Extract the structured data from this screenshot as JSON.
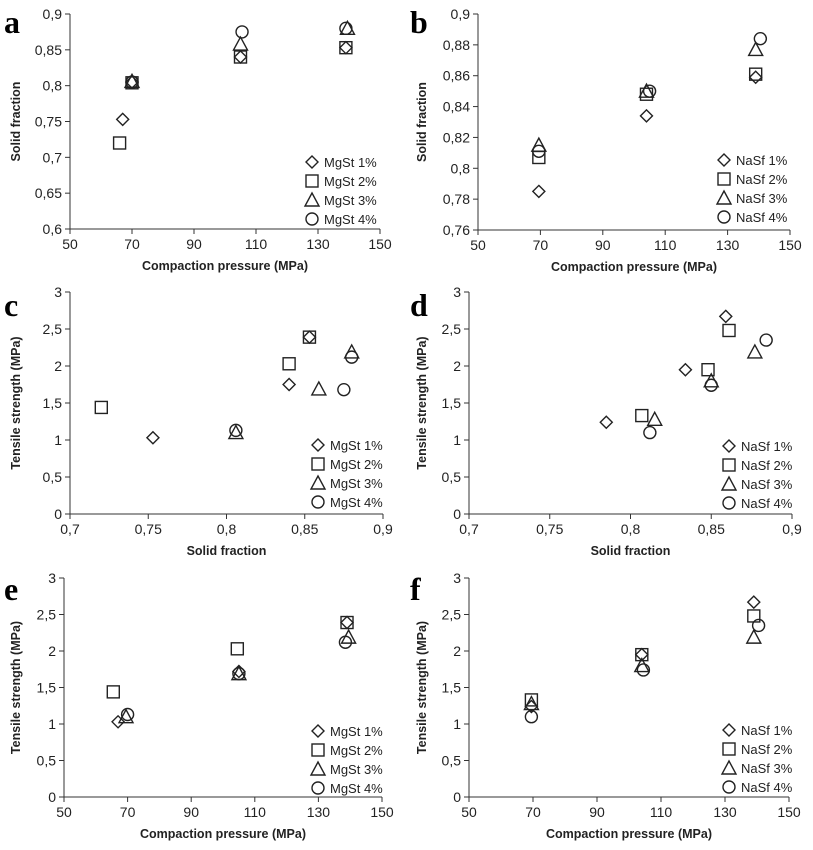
{
  "chart_data": [
    {
      "panel": "a",
      "type": "scatter",
      "xlabel": "Compaction pressure (MPa)",
      "ylabel": "Solid fraction",
      "xlim": [
        50,
        150
      ],
      "ylim": [
        0.6,
        0.9
      ],
      "xticks": [
        "50",
        "70",
        "90",
        "110",
        "130",
        "150"
      ],
      "yticks": [
        "0,6",
        "0,65",
        "0,7",
        "0,75",
        "0,8",
        "0,85",
        "0,9"
      ],
      "legend_position": "bottom-right",
      "series": [
        {
          "name": "MgSt 1%",
          "marker": "diamond",
          "points": [
            [
              67,
              0.753
            ],
            [
              70,
              0.805
            ],
            [
              105,
              0.84
            ],
            [
              139,
              0.853
            ]
          ]
        },
        {
          "name": "MgSt 2%",
          "marker": "square",
          "points": [
            [
              66,
              0.72
            ],
            [
              70,
              0.804
            ],
            [
              105,
              0.84
            ],
            [
              139,
              0.853
            ]
          ]
        },
        {
          "name": "MgSt 3%",
          "marker": "triangle",
          "points": [
            [
              70,
              0.806
            ],
            [
              105,
              0.858
            ],
            [
              139.5,
              0.88
            ]
          ]
        },
        {
          "name": "MgSt 4%",
          "marker": "circle",
          "points": [
            [
              70,
              0.805
            ],
            [
              105.5,
              0.875
            ],
            [
              139,
              0.88
            ]
          ]
        }
      ]
    },
    {
      "panel": "b",
      "type": "scatter",
      "xlabel": "Compaction pressure (MPa)",
      "ylabel": "Solid fraction",
      "xlim": [
        50,
        150
      ],
      "ylim": [
        0.76,
        0.9
      ],
      "xticks": [
        "50",
        "70",
        "90",
        "110",
        "130",
        "150"
      ],
      "yticks": [
        "0,76",
        "0,78",
        "0,8",
        "0,82",
        "0,84",
        "0,86",
        "0,88",
        "0,9"
      ],
      "legend_position": "bottom-right",
      "series": [
        {
          "name": "NaSf 1%",
          "marker": "diamond",
          "points": [
            [
              69.5,
              0.785
            ],
            [
              104,
              0.834
            ],
            [
              139,
              0.859
            ]
          ]
        },
        {
          "name": "NaSf 2%",
          "marker": "square",
          "points": [
            [
              69.5,
              0.807
            ],
            [
              104,
              0.848
            ],
            [
              139,
              0.861
            ]
          ]
        },
        {
          "name": "NaSf 3%",
          "marker": "triangle",
          "points": [
            [
              69.5,
              0.815
            ],
            [
              104,
              0.85
            ],
            [
              139,
              0.877
            ]
          ]
        },
        {
          "name": "NaSf 4%",
          "marker": "circle",
          "points": [
            [
              69.5,
              0.811
            ],
            [
              105,
              0.85
            ],
            [
              140.5,
              0.884
            ]
          ]
        }
      ]
    },
    {
      "panel": "c",
      "type": "scatter",
      "xlabel": "Solid fraction",
      "ylabel": "Tensile strength (MPa)",
      "xlim": [
        0.7,
        0.9
      ],
      "ylim": [
        0,
        3
      ],
      "xticks": [
        "0,7",
        "0,75",
        "0,8",
        "0,85",
        "0,9"
      ],
      "yticks": [
        "0",
        "0,5",
        "1",
        "1,5",
        "2",
        "2,5",
        "3"
      ],
      "legend_position": "bottom-right",
      "series": [
        {
          "name": "MgSt 1%",
          "marker": "diamond",
          "points": [
            [
              0.753,
              1.03
            ],
            [
              0.84,
              1.75
            ],
            [
              0.853,
              2.39
            ]
          ]
        },
        {
          "name": "MgSt 2%",
          "marker": "square",
          "points": [
            [
              0.72,
              1.44
            ],
            [
              0.84,
              2.03
            ],
            [
              0.853,
              2.39
            ]
          ]
        },
        {
          "name": "MgSt 3%",
          "marker": "triangle",
          "points": [
            [
              0.806,
              1.1
            ],
            [
              0.859,
              1.69
            ],
            [
              0.88,
              2.19
            ]
          ]
        },
        {
          "name": "MgSt 4%",
          "marker": "circle",
          "points": [
            [
              0.806,
              1.13
            ],
            [
              0.875,
              1.68
            ],
            [
              0.88,
              2.12
            ]
          ]
        }
      ]
    },
    {
      "panel": "d",
      "type": "scatter",
      "xlabel": "Solid fraction",
      "ylabel": "Tensile strength (MPa)",
      "xlim": [
        0.7,
        0.9
      ],
      "ylim": [
        0,
        3
      ],
      "xticks": [
        "0,7",
        "0,75",
        "0,8",
        "0,85",
        "0,9"
      ],
      "yticks": [
        "0",
        "0,5",
        "1",
        "1,5",
        "2",
        "2,5",
        "3"
      ],
      "legend_position": "bottom-right",
      "series": [
        {
          "name": "NaSf 1%",
          "marker": "diamond",
          "points": [
            [
              0.785,
              1.24
            ],
            [
              0.834,
              1.95
            ],
            [
              0.859,
              2.67
            ]
          ]
        },
        {
          "name": "NaSf 2%",
          "marker": "square",
          "points": [
            [
              0.807,
              1.33
            ],
            [
              0.848,
              1.95
            ],
            [
              0.861,
              2.48
            ]
          ]
        },
        {
          "name": "NaSf 3%",
          "marker": "triangle",
          "points": [
            [
              0.815,
              1.28
            ],
            [
              0.85,
              1.8
            ],
            [
              0.877,
              2.19
            ]
          ]
        },
        {
          "name": "NaSf 4%",
          "marker": "circle",
          "points": [
            [
              0.812,
              1.1
            ],
            [
              0.85,
              1.74
            ],
            [
              0.884,
              2.35
            ]
          ]
        }
      ]
    },
    {
      "panel": "e",
      "type": "scatter",
      "xlabel": "Compaction pressure (MPa)",
      "ylabel": "Tensile strength (MPa)",
      "xlim": [
        50,
        150
      ],
      "ylim": [
        0,
        3
      ],
      "xticks": [
        "50",
        "70",
        "90",
        "110",
        "130",
        "150"
      ],
      "yticks": [
        "0",
        "0,5",
        "1",
        "1,5",
        "2",
        "2,5",
        "3"
      ],
      "legend_position": "bottom-right",
      "series": [
        {
          "name": "MgSt 1%",
          "marker": "diamond",
          "points": [
            [
              67,
              1.03
            ],
            [
              105,
              1.72
            ],
            [
              139,
              2.39
            ]
          ]
        },
        {
          "name": "MgSt 2%",
          "marker": "square",
          "points": [
            [
              65.5,
              1.44
            ],
            [
              104.5,
              2.03
            ],
            [
              139,
              2.39
            ]
          ]
        },
        {
          "name": "MgSt 3%",
          "marker": "triangle",
          "points": [
            [
              69.5,
              1.1
            ],
            [
              105,
              1.69
            ],
            [
              139.5,
              2.19
            ]
          ]
        },
        {
          "name": "MgSt 4%",
          "marker": "circle",
          "points": [
            [
              70,
              1.13
            ],
            [
              105,
              1.69
            ],
            [
              138.5,
              2.12
            ]
          ]
        }
      ]
    },
    {
      "panel": "f",
      "type": "scatter",
      "xlabel": "Compaction pressure (MPa)",
      "ylabel": "Tensile strength (MPa)",
      "xlim": [
        50,
        150
      ],
      "ylim": [
        0,
        3
      ],
      "xticks": [
        "50",
        "70",
        "90",
        "110",
        "130",
        "150"
      ],
      "yticks": [
        "0",
        "0,5",
        "1",
        "1,5",
        "2",
        "2,5",
        "3"
      ],
      "legend_position": "bottom-right",
      "series": [
        {
          "name": "NaSf 1%",
          "marker": "diamond",
          "points": [
            [
              69.5,
              1.24
            ],
            [
              104,
              1.95
            ],
            [
              139,
              2.67
            ]
          ]
        },
        {
          "name": "NaSf 2%",
          "marker": "square",
          "points": [
            [
              69.5,
              1.33
            ],
            [
              104,
              1.95
            ],
            [
              139,
              2.48
            ]
          ]
        },
        {
          "name": "NaSf 3%",
          "marker": "triangle",
          "points": [
            [
              69.5,
              1.28
            ],
            [
              104,
              1.8
            ],
            [
              139,
              2.19
            ]
          ]
        },
        {
          "name": "NaSf 4%",
          "marker": "circle",
          "points": [
            [
              69.5,
              1.1
            ],
            [
              104.5,
              1.74
            ],
            [
              140.5,
              2.35
            ]
          ]
        }
      ]
    }
  ]
}
